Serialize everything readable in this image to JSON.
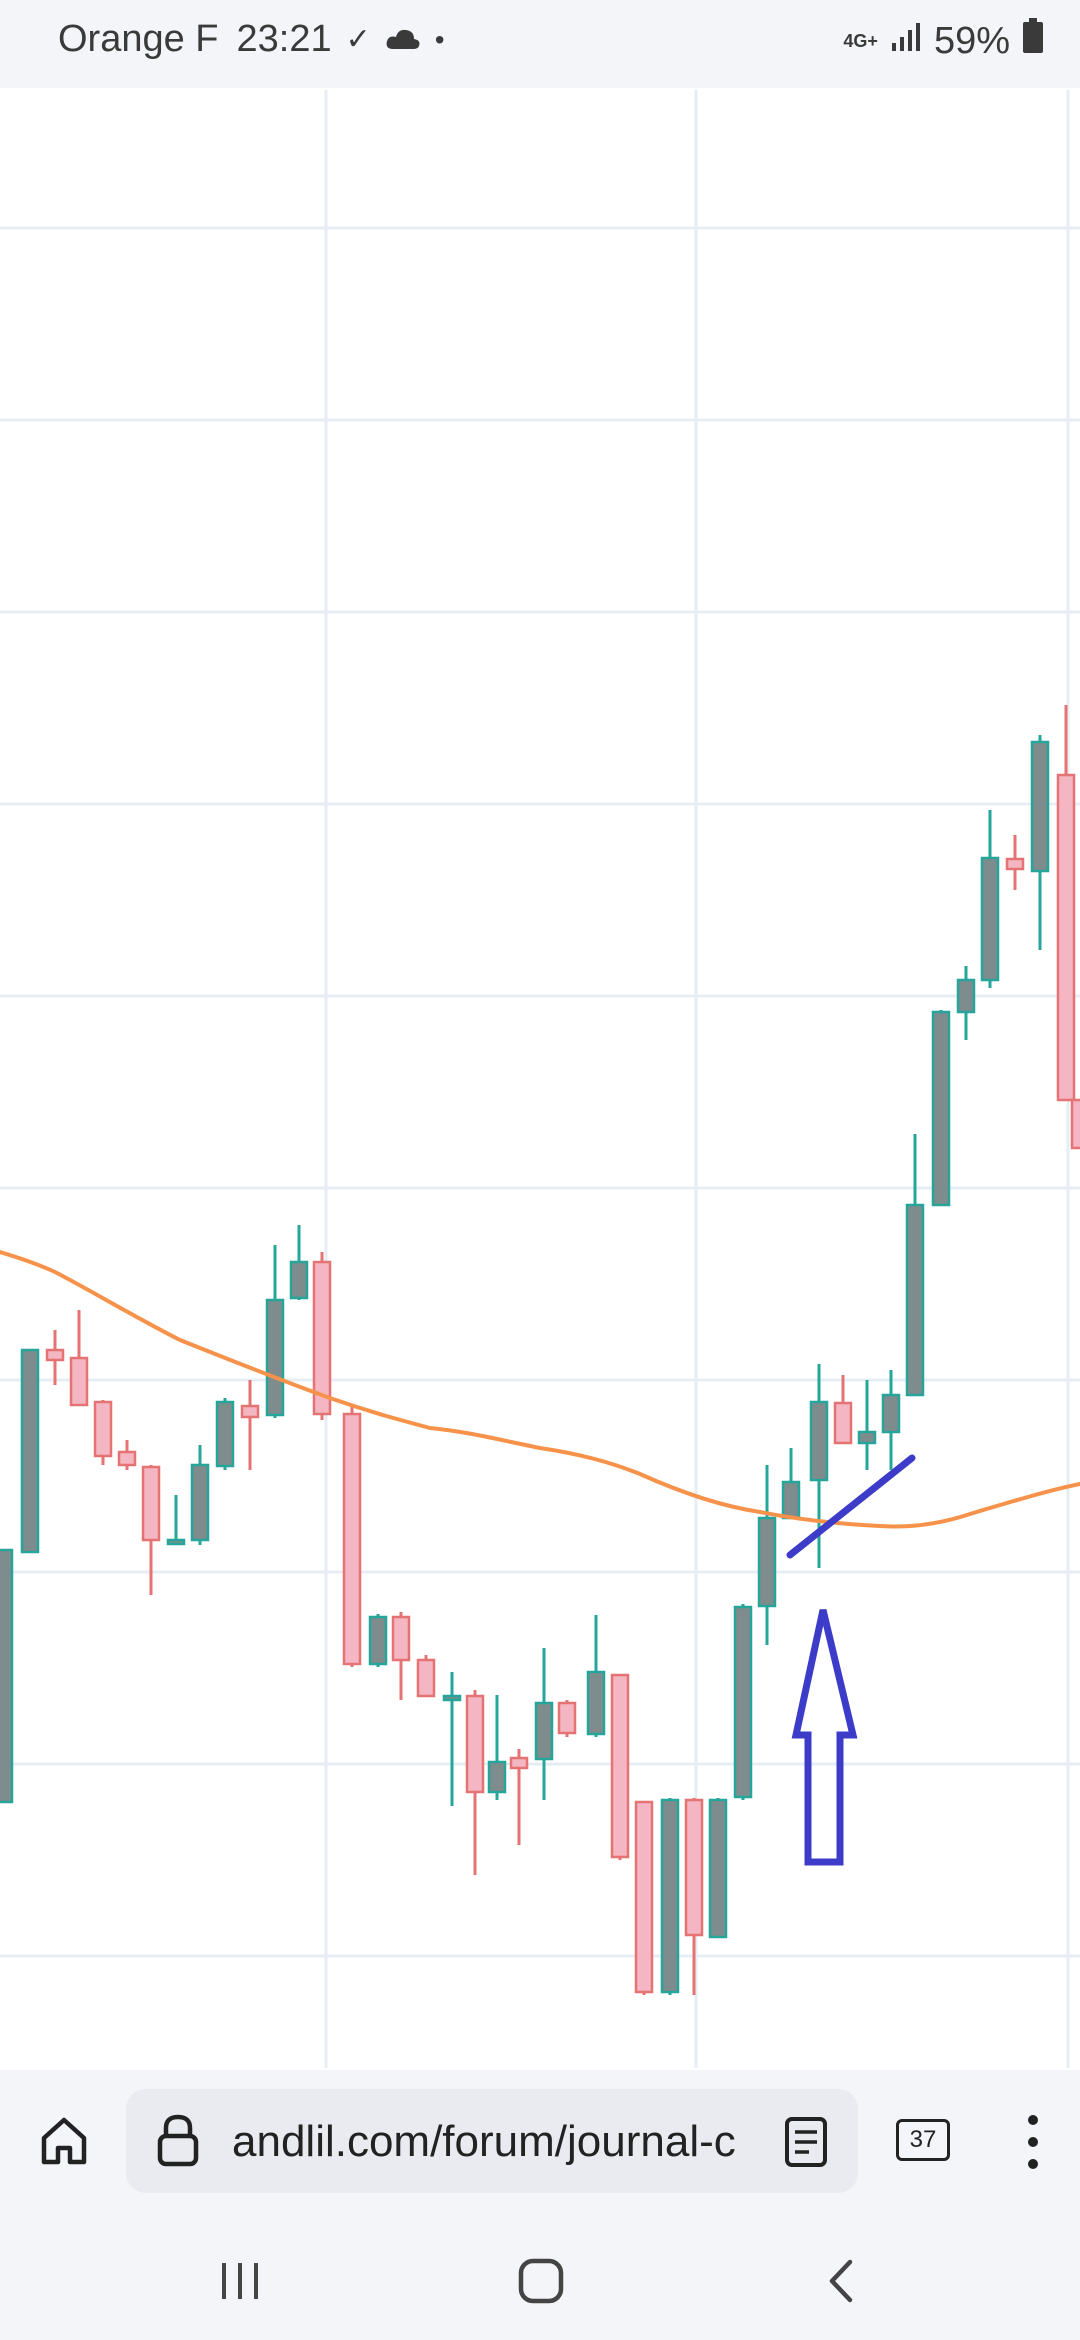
{
  "status_bar": {
    "carrier": "Orange F",
    "time": "23:21",
    "network": "4G+",
    "battery": "59%"
  },
  "chart": {
    "icons": [
      "arrow-up-annotation",
      "trend-line-annotation"
    ],
    "colors": {
      "bull": "#7f8c8d",
      "bull_border": "#26a69a",
      "bear": "#f4b6c2",
      "bear_border": "#e57373",
      "ma": "#f7924a",
      "annotation": "#3c3cc8",
      "grid": "#e6eef4"
    }
  },
  "browser": {
    "url": "andlil.com/forum/journal-c",
    "tab_count": "37"
  }
}
